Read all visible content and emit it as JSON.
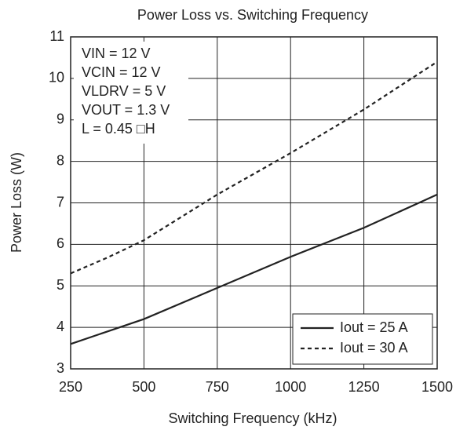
{
  "chart_data": {
    "type": "line",
    "title": "Power Loss vs. Switching Frequency",
    "x_label": "Switching Frequency   (kHz)",
    "y_label": "Power Loss   (W)",
    "annotations": [
      "VIN = 12 V",
      "VCIN = 12 V",
      "VLDRV = 5 V",
      "VOUT = 1.3 V",
      "L = 0.45 □H"
    ],
    "x": [
      250,
      375,
      500,
      750,
      1000,
      1250,
      1500
    ],
    "series": [
      {
        "name": "Iout = 25 A",
        "color": "#222222",
        "dash": "solid",
        "values": [
          3.6,
          3.9,
          4.2,
          4.95,
          5.7,
          6.4,
          7.2
        ]
      },
      {
        "name": "Iout = 30 A",
        "color": "#222222",
        "dash": "dashed",
        "values": [
          5.3,
          5.68,
          6.1,
          7.2,
          8.2,
          9.25,
          10.4
        ]
      }
    ],
    "xlim": [
      250,
      1500
    ],
    "xticks": [
      250,
      500,
      750,
      1000,
      1250,
      1500
    ],
    "ylim": [
      3,
      11
    ],
    "yticks": [
      3,
      4,
      5,
      6,
      7,
      8,
      9,
      10,
      11
    ],
    "grid": true,
    "legend": "lower right"
  }
}
